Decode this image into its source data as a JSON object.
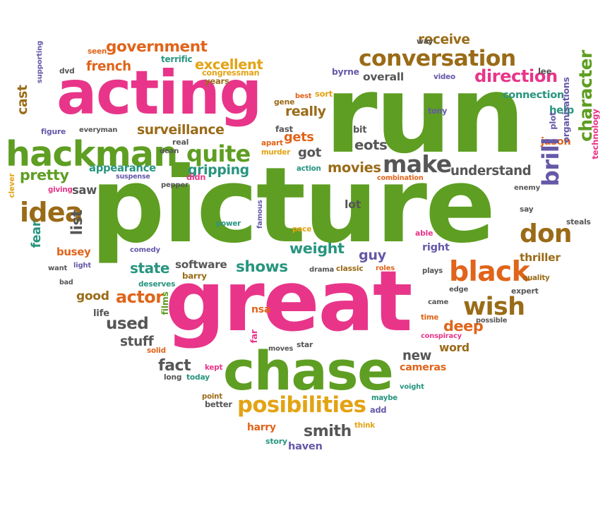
{
  "palette": {
    "green": "#5e9e22",
    "pink": "#e8358a",
    "brown": "#9a6b17",
    "orange": "#e0641a",
    "teal": "#27957f",
    "gray": "#565656",
    "purple": "#6559a8",
    "gold": "#e3a313"
  },
  "words": [
    {
      "text": "picture",
      "color": "green"
    },
    {
      "text": "great",
      "color": "pink"
    },
    {
      "text": "run",
      "color": "green"
    },
    {
      "text": "acting",
      "color": "pink"
    },
    {
      "text": "chase",
      "color": "green"
    },
    {
      "text": "hackman",
      "color": "green"
    },
    {
      "text": "conversation",
      "color": "brown"
    },
    {
      "text": "posibilities",
      "color": "gold"
    },
    {
      "text": "idea",
      "color": "brown"
    },
    {
      "text": "black",
      "color": "orange"
    },
    {
      "text": "make",
      "color": "gray"
    },
    {
      "text": "government",
      "color": "orange"
    },
    {
      "text": "quite",
      "color": "green"
    },
    {
      "text": "direction",
      "color": "pink"
    },
    {
      "text": "wish",
      "color": "brown"
    },
    {
      "text": "don",
      "color": "brown"
    },
    {
      "text": "surveillance",
      "color": "brown"
    },
    {
      "text": "pretty",
      "color": "green"
    },
    {
      "text": "excellent",
      "color": "gold"
    },
    {
      "text": "understand",
      "color": "gray"
    },
    {
      "text": "movies",
      "color": "brown"
    },
    {
      "text": "weight",
      "color": "teal"
    },
    {
      "text": "shows",
      "color": "teal"
    },
    {
      "text": "smith",
      "color": "gray"
    },
    {
      "text": "receive",
      "color": "brown"
    },
    {
      "text": "french",
      "color": "orange"
    },
    {
      "text": "appearance",
      "color": "teal"
    },
    {
      "text": "really",
      "color": "brown"
    },
    {
      "text": "gets",
      "color": "orange"
    },
    {
      "text": "got",
      "color": "gray"
    },
    {
      "text": "eots",
      "color": "gray"
    },
    {
      "text": "used",
      "color": "gray"
    },
    {
      "text": "actor",
      "color": "orange"
    },
    {
      "text": "good",
      "color": "brown"
    },
    {
      "text": "state",
      "color": "teal"
    },
    {
      "text": "fact",
      "color": "gray"
    },
    {
      "text": "new",
      "color": "gray"
    },
    {
      "text": "deep",
      "color": "orange"
    },
    {
      "text": "guy",
      "color": "purple"
    },
    {
      "text": "gripping",
      "color": "teal"
    },
    {
      "text": "busey",
      "color": "orange"
    },
    {
      "text": "cast",
      "color": "brown"
    },
    {
      "text": "fear",
      "color": "teal"
    },
    {
      "text": "list",
      "color": "gray"
    },
    {
      "text": "stuff",
      "color": "gray"
    },
    {
      "text": "word",
      "color": "brown"
    },
    {
      "text": "cameras",
      "color": "orange"
    },
    {
      "text": "thriller",
      "color": "brown"
    },
    {
      "text": "software",
      "color": "gray"
    },
    {
      "text": "saw",
      "color": "gray"
    },
    {
      "text": "help",
      "color": "teal"
    },
    {
      "text": "jason",
      "color": "orange"
    },
    {
      "text": "right",
      "color": "purple"
    },
    {
      "text": "connection",
      "color": "teal"
    },
    {
      "text": "overall",
      "color": "gray"
    },
    {
      "text": "harry",
      "color": "orange"
    },
    {
      "text": "haven",
      "color": "purple"
    },
    {
      "text": "lot",
      "color": "gray"
    },
    {
      "text": "nsa",
      "color": "orange"
    },
    {
      "text": "character",
      "color": "green"
    },
    {
      "text": "brill",
      "color": "purple"
    },
    {
      "text": "organisations",
      "color": "purple"
    },
    {
      "text": "technology",
      "color": "pink"
    },
    {
      "text": "supporting",
      "color": "purple"
    },
    {
      "text": "clever",
      "color": "gold"
    },
    {
      "text": "films",
      "color": "green"
    },
    {
      "text": "famous",
      "color": "purple"
    },
    {
      "text": "plot",
      "color": "purple"
    },
    {
      "text": "far",
      "color": "pink"
    },
    {
      "text": "terrific",
      "color": "teal"
    },
    {
      "text": "seen",
      "color": "orange"
    },
    {
      "text": "dvd",
      "color": "gray"
    },
    {
      "text": "congressman",
      "color": "gold"
    },
    {
      "text": "years",
      "color": "brown"
    },
    {
      "text": "byrne",
      "color": "purple"
    },
    {
      "text": "video",
      "color": "purple"
    },
    {
      "text": "lee",
      "color": "gray"
    },
    {
      "text": "way",
      "color": "gray"
    },
    {
      "text": "gene",
      "color": "brown"
    },
    {
      "text": "best",
      "color": "orange"
    },
    {
      "text": "sort",
      "color": "gold"
    },
    {
      "text": "tony",
      "color": "purple"
    },
    {
      "text": "figure",
      "color": "purple"
    },
    {
      "text": "everyman",
      "color": "gray"
    },
    {
      "text": "real",
      "color": "gray"
    },
    {
      "text": "dean",
      "color": "gray"
    },
    {
      "text": "fast",
      "color": "gray"
    },
    {
      "text": "bit",
      "color": "gray"
    },
    {
      "text": "apart",
      "color": "orange"
    },
    {
      "text": "murder",
      "color": "gold"
    },
    {
      "text": "didn",
      "color": "pink"
    },
    {
      "text": "suspense",
      "color": "purple"
    },
    {
      "text": "giving",
      "color": "pink"
    },
    {
      "text": "pepper",
      "color": "gray"
    },
    {
      "text": "action",
      "color": "teal"
    },
    {
      "text": "combination",
      "color": "orange"
    },
    {
      "text": "enemy",
      "color": "gray"
    },
    {
      "text": "say",
      "color": "gray"
    },
    {
      "text": "steals",
      "color": "gray"
    },
    {
      "text": "power",
      "color": "teal"
    },
    {
      "text": "pace",
      "color": "gold"
    },
    {
      "text": "able",
      "color": "pink"
    },
    {
      "text": "comedy",
      "color": "purple"
    },
    {
      "text": "want",
      "color": "gray"
    },
    {
      "text": "light",
      "color": "purple"
    },
    {
      "text": "barry",
      "color": "brown"
    },
    {
      "text": "drama",
      "color": "gray"
    },
    {
      "text": "classic",
      "color": "brown"
    },
    {
      "text": "roles",
      "color": "orange"
    },
    {
      "text": "plays",
      "color": "gray"
    },
    {
      "text": "quality",
      "color": "brown"
    },
    {
      "text": "edge",
      "color": "gray"
    },
    {
      "text": "expert",
      "color": "gray"
    },
    {
      "text": "bad",
      "color": "gray"
    },
    {
      "text": "deserves",
      "color": "teal"
    },
    {
      "text": "life",
      "color": "gray"
    },
    {
      "text": "came",
      "color": "gray"
    },
    {
      "text": "time",
      "color": "orange"
    },
    {
      "text": "possible",
      "color": "gray"
    },
    {
      "text": "conspiracy",
      "color": "pink"
    },
    {
      "text": "solid",
      "color": "orange"
    },
    {
      "text": "moves",
      "color": "gray"
    },
    {
      "text": "star",
      "color": "gray"
    },
    {
      "text": "kept",
      "color": "pink"
    },
    {
      "text": "long",
      "color": "gray"
    },
    {
      "text": "today",
      "color": "teal"
    },
    {
      "text": "voight",
      "color": "teal"
    },
    {
      "text": "point",
      "color": "brown"
    },
    {
      "text": "better",
      "color": "gray"
    },
    {
      "text": "maybe",
      "color": "teal"
    },
    {
      "text": "add",
      "color": "purple"
    },
    {
      "text": "think",
      "color": "gold"
    },
    {
      "text": "story",
      "color": "teal"
    }
  ]
}
